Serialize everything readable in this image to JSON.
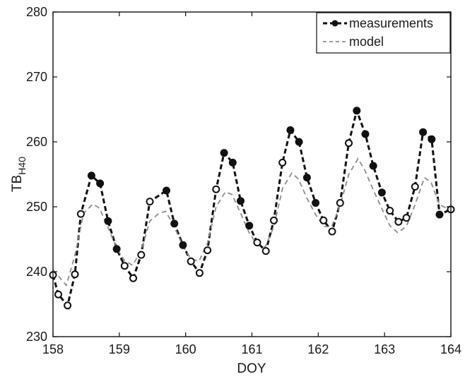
{
  "chart_data": {
    "type": "line",
    "title": "",
    "xlabel": "DOY",
    "ylabel": "TB",
    "ylabel_subscript": "H40",
    "xlim": [
      158,
      164
    ],
    "ylim": [
      230,
      280
    ],
    "xticks": [
      158,
      159,
      160,
      161,
      162,
      163,
      164
    ],
    "yticks": [
      230,
      240,
      250,
      260,
      270,
      280
    ],
    "grid": false,
    "legend_position": "top-right",
    "series": [
      {
        "name": "measurements",
        "color": "#111111",
        "line_style": "dashed",
        "marker": "circle",
        "x": [
          158.0,
          158.08,
          158.22,
          158.33,
          158.42,
          158.58,
          158.71,
          158.83,
          158.96,
          159.08,
          159.21,
          159.33,
          159.46,
          159.71,
          159.83,
          159.96,
          160.08,
          160.21,
          160.33,
          160.46,
          160.58,
          160.71,
          160.83,
          160.96,
          161.08,
          161.21,
          161.33,
          161.46,
          161.58,
          161.71,
          161.83,
          161.96,
          162.08,
          162.21,
          162.33,
          162.46,
          162.58,
          162.71,
          162.83,
          162.96,
          163.08,
          163.21,
          163.33,
          163.46,
          163.58,
          163.71,
          163.83,
          164.0
        ],
        "y": [
          239.5,
          236.5,
          234.8,
          239.6,
          248.9,
          254.8,
          253.6,
          247.8,
          243.5,
          240.9,
          239.0,
          242.6,
          250.8,
          252.5,
          247.4,
          244.1,
          241.6,
          239.8,
          243.3,
          252.7,
          258.3,
          256.8,
          250.9,
          247.1,
          244.5,
          243.2,
          247.9,
          256.8,
          261.8,
          260.0,
          254.5,
          250.6,
          247.9,
          246.2,
          250.6,
          259.8,
          264.8,
          261.2,
          256.3,
          252.2,
          249.4,
          247.7,
          248.3,
          253.1,
          261.5,
          260.4,
          248.8,
          249.6
        ]
      },
      {
        "name": "model",
        "color": "#8c8c8c",
        "line_style": "dashed",
        "marker": "none",
        "x": [
          158.0,
          158.2,
          158.33,
          158.46,
          158.6,
          158.7,
          158.83,
          158.96,
          159.08,
          159.2,
          159.33,
          159.46,
          159.6,
          159.7,
          159.83,
          159.96,
          160.08,
          160.2,
          160.33,
          160.46,
          160.6,
          160.7,
          160.83,
          160.96,
          161.08,
          161.2,
          161.33,
          161.46,
          161.6,
          161.7,
          161.83,
          161.96,
          162.08,
          162.2,
          162.33,
          162.46,
          162.6,
          162.7,
          162.83,
          162.96,
          163.08,
          163.2,
          163.33,
          163.46,
          163.6,
          163.7,
          163.83,
          164.0
        ],
        "y": [
          240.3,
          237.9,
          242.5,
          249.0,
          250.4,
          249.8,
          246.8,
          243.6,
          241.7,
          241.0,
          243.2,
          247.8,
          249.0,
          249.3,
          246.9,
          243.9,
          242.0,
          241.6,
          244.4,
          250.0,
          252.3,
          251.9,
          249.0,
          246.0,
          244.1,
          243.8,
          246.9,
          252.8,
          255.2,
          254.3,
          251.3,
          248.8,
          247.0,
          246.9,
          250.2,
          255.0,
          257.4,
          255.7,
          252.6,
          249.7,
          247.1,
          246.0,
          247.0,
          250.3,
          254.5,
          253.8,
          250.3,
          249.5
        ]
      }
    ]
  }
}
